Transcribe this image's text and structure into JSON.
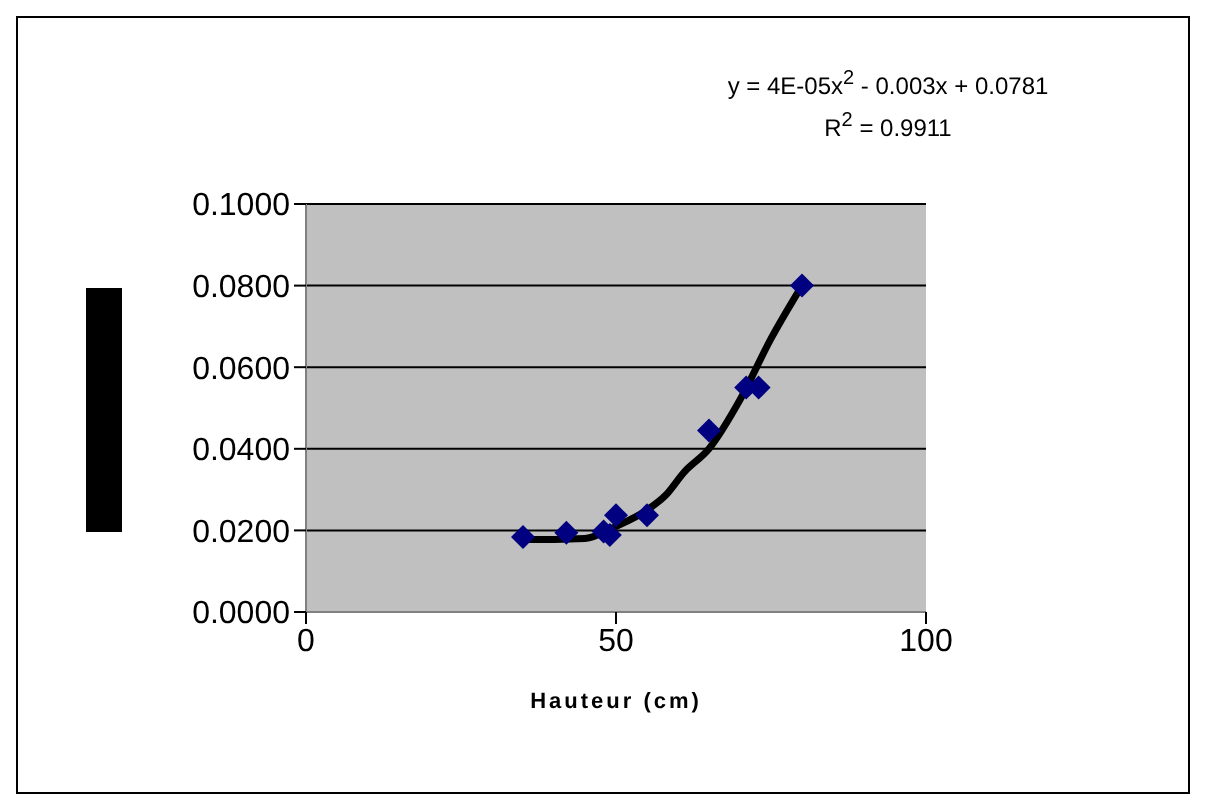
{
  "chart_data": {
    "type": "scatter",
    "xlabel": "Hauteur (cm)",
    "annotations": [
      "y = 4E-05x$^{2}$ - 0.003x + 0.0781",
      "R$^{2}$ = 0.9911"
    ],
    "series": [
      {
        "color": "#000080",
        "marker": "diamond",
        "x": [
          35,
          42,
          48,
          49,
          50,
          55,
          65,
          71,
          73,
          80
        ],
        "values": [
          0.0184,
          0.0194,
          0.0197,
          0.0189,
          0.0237,
          0.0237,
          0.0445,
          0.055,
          0.055,
          0.08
        ]
      },
      {
        "type": "line",
        "color": "#000000",
        "marker": "none",
        "x": [
          35,
          40,
          45,
          50,
          55,
          58,
          61,
          65,
          70,
          75,
          80
        ],
        "values": [
          0.0178,
          0.0178,
          0.018,
          0.021,
          0.025,
          0.0286,
          0.0343,
          0.04,
          0.052,
          0.067,
          0.08
        ]
      }
    ],
    "xlim": [
      0,
      100
    ],
    "xticks": [
      0,
      50,
      100
    ],
    "ylim": [
      0,
      0.1
    ],
    "yticks": [
      {
        "value": 0,
        "label": "0.0000"
      },
      {
        "value": 0.02,
        "label": "0.0200"
      },
      {
        "value": 0.04,
        "label": "0.0400"
      },
      {
        "value": 0.06,
        "label": "0.0600"
      },
      {
        "value": 0.08,
        "label": "0.0800"
      },
      {
        "value": 0.1,
        "label": "0.1000"
      }
    ],
    "grid": "y",
    "legend": false,
    "line_style": "solid"
  }
}
